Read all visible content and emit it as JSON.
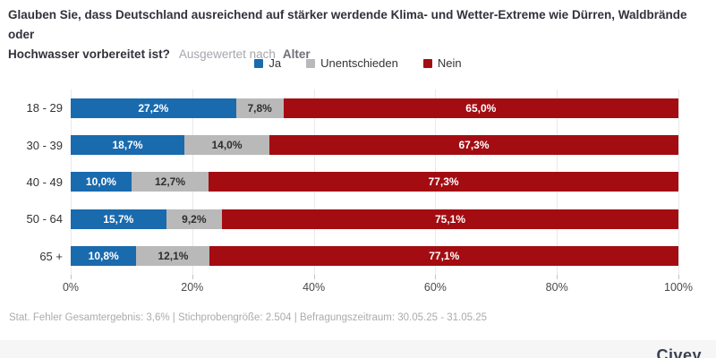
{
  "header": {
    "title_line1": "Glauben Sie, dass Deutschland ausreichend auf stärker werdende Klima- und Wetter-Extreme wie Dürren, Waldbrände oder",
    "title_line2": "Hochwasser vorbereitet ist?",
    "subtitle_prefix": "Ausgewertet nach",
    "subtitle_value": "Alter"
  },
  "chart_data": {
    "type": "bar",
    "stacked": true,
    "orientation": "horizontal",
    "title": "Glauben Sie, dass Deutschland ausreichend auf stärker werdende Klima- und Wetter-Extreme wie Dürren, Waldbrände oder Hochwasser vorbereitet ist?",
    "subtitle": "Ausgewertet nach Alter",
    "categories": [
      "18 - 29",
      "30 - 39",
      "40 - 49",
      "50 - 64",
      "65 +"
    ],
    "series": [
      {
        "name": "Ja",
        "color": "#1a6aae",
        "label_color": "#ffffff",
        "values": [
          27.2,
          18.7,
          10.0,
          15.7,
          10.8
        ],
        "labels": [
          "27,2%",
          "18,7%",
          "10,0%",
          "15,7%",
          "10,8%"
        ]
      },
      {
        "name": "Unentschieden",
        "color": "#b9b9b9",
        "label_color": "#2e2e2e",
        "values": [
          7.8,
          14.0,
          12.7,
          9.2,
          12.1
        ],
        "labels": [
          "7,8%",
          "14,0%",
          "12,7%",
          "9,2%",
          "12,1%"
        ]
      },
      {
        "name": "Nein",
        "color": "#a30d12",
        "label_color": "#ffffff",
        "values": [
          65.0,
          67.3,
          77.3,
          75.1,
          77.1
        ],
        "labels": [
          "65,0%",
          "67,3%",
          "77,3%",
          "75,1%",
          "77,1%"
        ]
      }
    ],
    "x_ticks": [
      "0%",
      "20%",
      "40%",
      "60%",
      "80%",
      "100%"
    ],
    "xlim": [
      0,
      100
    ],
    "grid": true,
    "legend_position": "top-center"
  },
  "footer": {
    "stats": "Stat. Fehler Gesamtergebnis: 3,6% | Stichprobengröße: 2.504 | Befragungszeitraum: 30.05.25 - 31.05.25",
    "brand": "Civey"
  }
}
